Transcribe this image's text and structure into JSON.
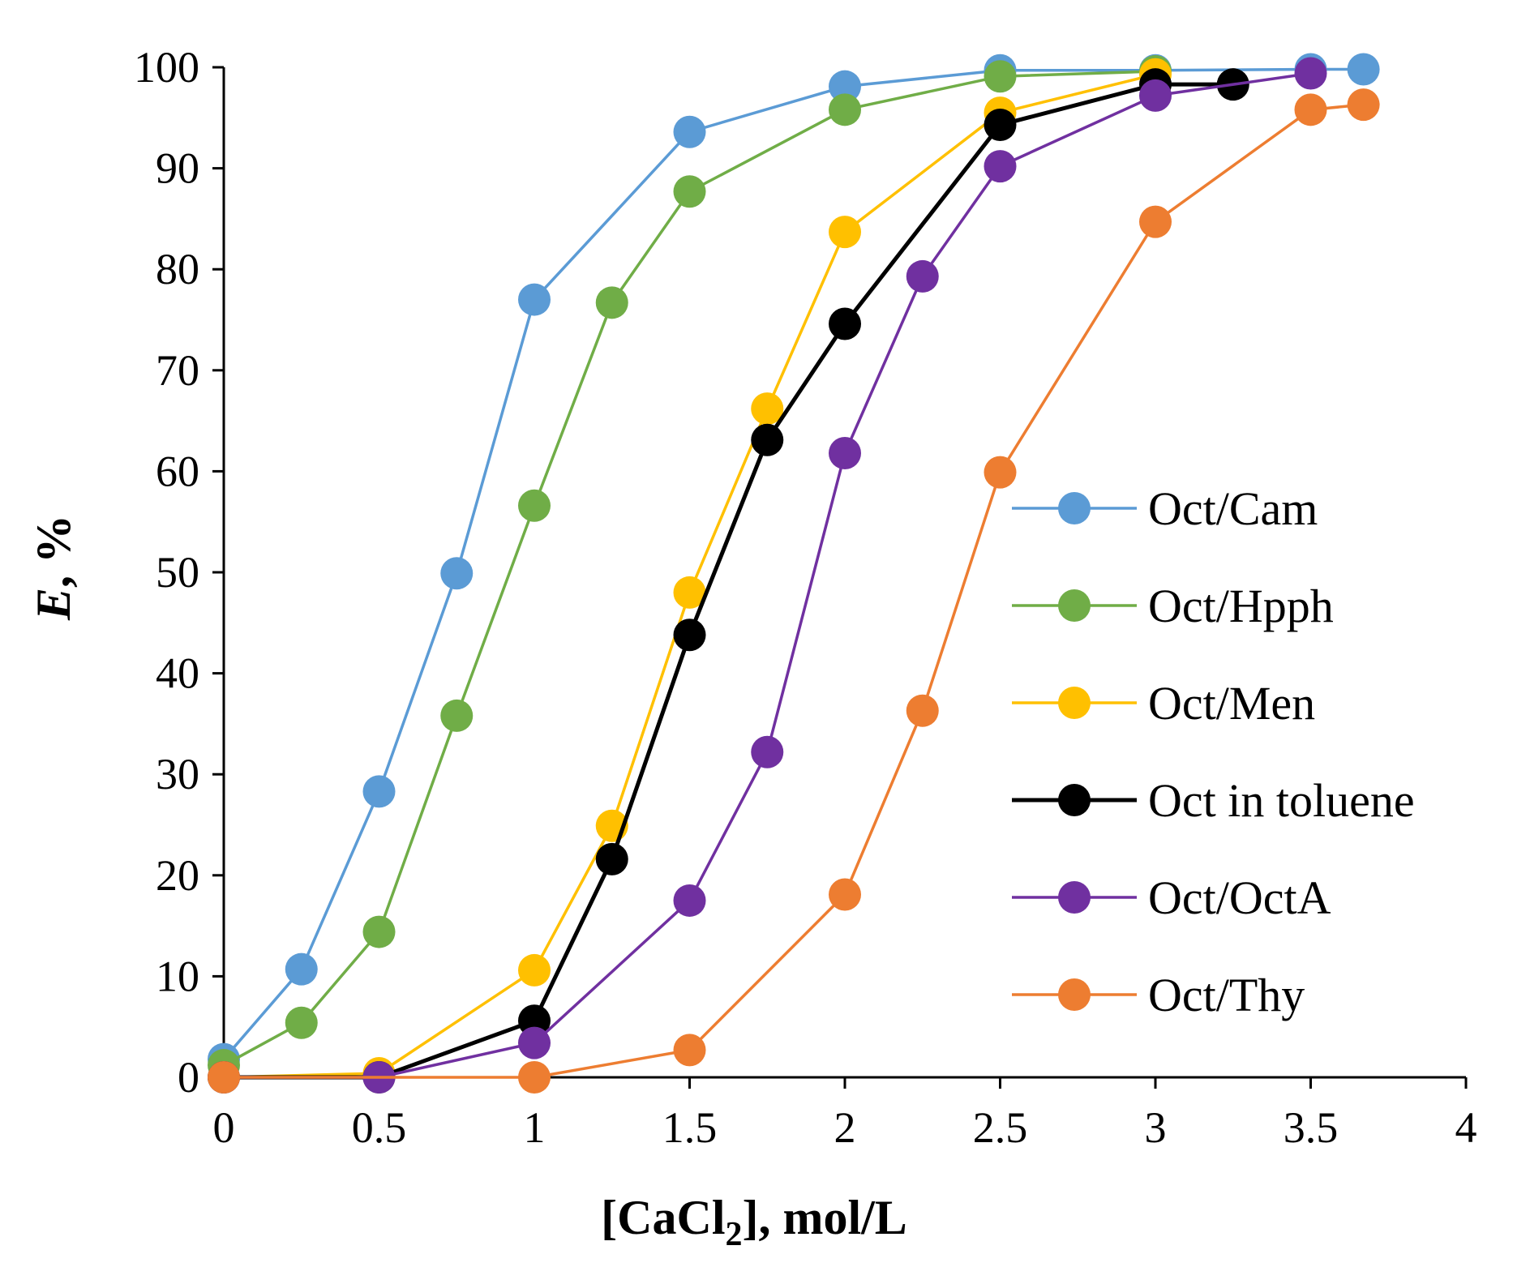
{
  "chart_data": {
    "type": "line",
    "title": "",
    "xlabel": "[CaCl2], mol/L",
    "xlabel_parts": {
      "pre": "[CaCl",
      "sub": "2",
      "post": "], mol/L"
    },
    "ylabel": "E, %",
    "ylabel_parts": {
      "italic": "E",
      "rest": ", %"
    },
    "xlim": [
      0,
      4
    ],
    "ylim": [
      0,
      100
    ],
    "x_ticks": [
      0,
      0.5,
      1,
      1.5,
      2,
      2.5,
      3,
      3.5,
      4
    ],
    "y_ticks": [
      0,
      10,
      20,
      30,
      40,
      50,
      60,
      70,
      80,
      90,
      100
    ],
    "grid": false,
    "legend_position": "right",
    "series": [
      {
        "name": "Oct/Cam",
        "color": "#5B9BD5",
        "x": [
          0,
          0.25,
          0.5,
          0.75,
          1,
          1.5,
          2,
          2.5,
          3,
          3.5,
          3.67
        ],
        "y": [
          1.8,
          10.7,
          28.3,
          49.9,
          77,
          93.6,
          98.1,
          99.7,
          99.7,
          99.8,
          99.8
        ]
      },
      {
        "name": "Oct/Hpph",
        "color": "#70AD47",
        "x": [
          0,
          0.25,
          0.5,
          0.75,
          1,
          1.25,
          1.5,
          2,
          2.5,
          3
        ],
        "y": [
          1.2,
          5.4,
          14.4,
          35.8,
          56.6,
          76.7,
          87.7,
          95.8,
          99.1,
          99.6
        ]
      },
      {
        "name": "Oct/Men",
        "color": "#FFC000",
        "x": [
          0,
          0.5,
          1,
          1.25,
          1.5,
          1.75,
          2,
          2.5,
          3
        ],
        "y": [
          0,
          0.4,
          10.6,
          24.9,
          48,
          66.2,
          83.7,
          95.5,
          99.3
        ]
      },
      {
        "name": "Oct in toluene",
        "color": "#000000",
        "x": [
          0,
          0.5,
          1,
          1.25,
          1.5,
          1.75,
          2,
          2.5,
          3,
          3.25
        ],
        "y": [
          0,
          0,
          5.6,
          21.6,
          43.8,
          63.1,
          74.6,
          94.3,
          98.3,
          98.3
        ]
      },
      {
        "name": "Oct/OctA",
        "color": "#7030A0",
        "x": [
          0,
          0.5,
          1,
          1.5,
          1.75,
          2,
          2.25,
          2.5,
          3,
          3.5
        ],
        "y": [
          0,
          0,
          3.4,
          17.5,
          32.2,
          61.8,
          79.3,
          90.2,
          97.2,
          99.4
        ]
      },
      {
        "name": "Oct/Thy",
        "color": "#ED7D31",
        "x": [
          0,
          1,
          1.5,
          2,
          2.25,
          2.5,
          3,
          3.5,
          3.67
        ],
        "y": [
          0,
          0,
          2.7,
          18.1,
          36.3,
          59.9,
          84.7,
          95.8,
          96.3
        ]
      }
    ]
  }
}
